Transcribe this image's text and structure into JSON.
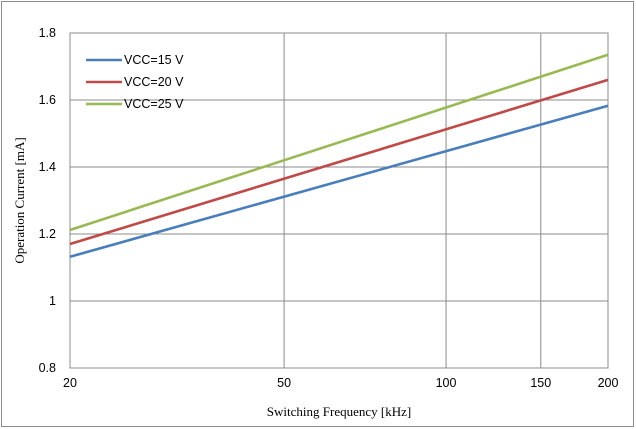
{
  "chart_data": {
    "type": "line",
    "xlabel": "Switching Frequency  [kHz]",
    "ylabel": "Operation Current  [mA]",
    "x_ticks": [
      20,
      50,
      100,
      150,
      200
    ],
    "y_ticks": [
      "0.8",
      "1",
      "1.2",
      "1.4",
      "1.6",
      "1.8"
    ],
    "xlim": [
      20,
      200
    ],
    "ylim": [
      0.8,
      1.8
    ],
    "grid": true,
    "legend_position": "top-left",
    "series": [
      {
        "name": "VCC=15 V",
        "color": "#4a7ebb",
        "x": [
          20,
          200
        ],
        "y": [
          1.132,
          1.583
        ]
      },
      {
        "name": "VCC=20 V",
        "color": "#be4b48",
        "x": [
          20,
          200
        ],
        "y": [
          1.17,
          1.66
        ]
      },
      {
        "name": "VCC=25 V",
        "color": "#98b954",
        "x": [
          20,
          200
        ],
        "y": [
          1.212,
          1.735
        ]
      }
    ]
  }
}
